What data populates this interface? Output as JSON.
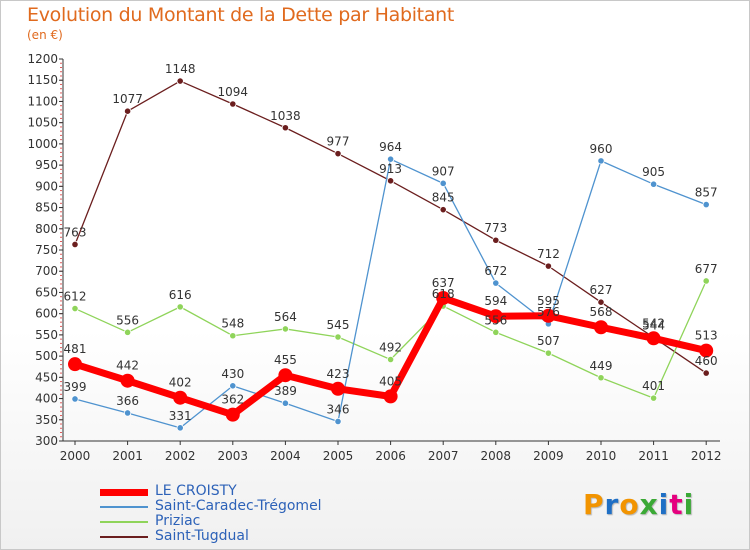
{
  "header": {
    "title": "Evolution du Montant de la Dette par Habitant",
    "subtitle": "(en €)"
  },
  "brand": {
    "text": "Proxiti",
    "letter_colors": [
      "#f29400",
      "#1f6fc5",
      "#f29400",
      "#3aa935",
      "#1f6fc5",
      "#e5007e",
      "#3aa935"
    ]
  },
  "chart_data": {
    "type": "line",
    "title": "Evolution du Montant de la Dette par Habitant",
    "subtitle": "(en €)",
    "xlabel": "",
    "ylabel": "",
    "categories": [
      "2000",
      "2001",
      "2002",
      "2003",
      "2004",
      "2005",
      "2006",
      "2007",
      "2008",
      "2009",
      "2010",
      "2011",
      "2012"
    ],
    "ylim": [
      300,
      1200
    ],
    "yticks": [
      300,
      350,
      400,
      450,
      500,
      550,
      600,
      650,
      700,
      750,
      800,
      850,
      900,
      950,
      1000,
      1050,
      1100,
      1150,
      1200
    ],
    "grid": false,
    "legend_position": "bottom-left",
    "series": [
      {
        "name": "Saint-Tugdual",
        "color": "#6b1e1e",
        "values": [
          763,
          1077,
          1148,
          1094,
          1038,
          977,
          913,
          845,
          773,
          712,
          627,
          544,
          460
        ],
        "labels": [
          "763",
          "1077",
          "1148",
          "1094",
          "1038",
          "977",
          "913",
          "845",
          "773",
          "712",
          "627",
          "544",
          "460"
        ]
      },
      {
        "name": "Priziac",
        "color": "#8fd45a",
        "values": [
          612,
          556,
          616,
          548,
          564,
          545,
          492,
          618,
          556,
          507,
          449,
          401,
          677
        ],
        "labels": [
          "612",
          "556",
          "616",
          "548",
          "564",
          "545",
          "492",
          "618",
          "556",
          "507",
          "449",
          "401",
          "677"
        ]
      },
      {
        "name": "Saint-Caradec-Trégomel",
        "color": "#4f93cf",
        "values": [
          399,
          366,
          331,
          430,
          389,
          346,
          964,
          907,
          672,
          576,
          960,
          905,
          857
        ],
        "labels": [
          "399",
          "366",
          "331",
          "430",
          "389",
          "346",
          "964",
          "907",
          "672",
          "576",
          "960",
          "905",
          "857"
        ]
      },
      {
        "name": "LE CROISTY",
        "color": "#ff0000",
        "values": [
          481,
          442,
          402,
          362,
          455,
          423,
          405,
          637,
          594,
          595,
          568,
          542,
          513
        ],
        "labels": [
          "481",
          "442",
          "402",
          "362",
          "455",
          "423",
          "405",
          "637",
          "594",
          "595",
          "568",
          "542",
          "513"
        ]
      }
    ],
    "legend_order": [
      "LE CROISTY",
      "Saint-Caradec-Trégomel",
      "Priziac",
      "Saint-Tugdual"
    ]
  }
}
